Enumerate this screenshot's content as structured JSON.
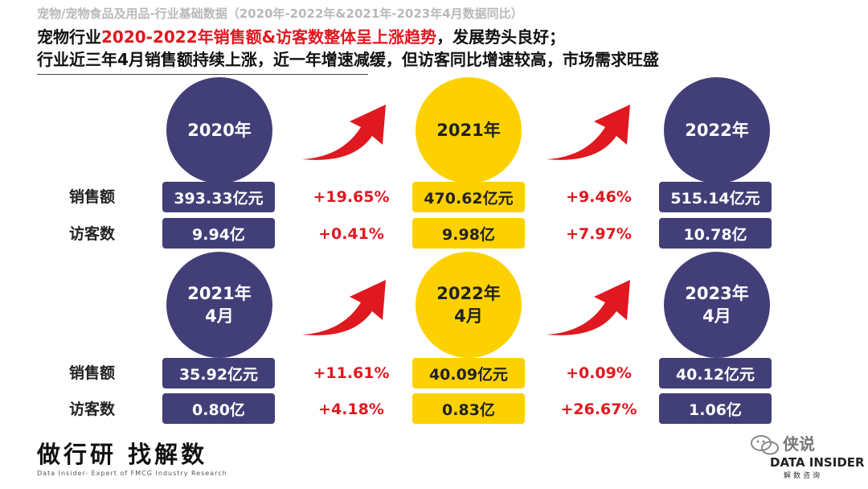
{
  "header": {
    "subtitle": "宠物/宠物食品及用品-行业基础数据（2020年-2022年&2021年-2023年4月数据同比）",
    "line1_prefix": "宠物行业",
    "line1_highlight": "2020-2022年销售额&访客数整体呈上涨趋势",
    "line1_suffix": "，发展势头良好；",
    "line2": "行业近三年4月销售额持续上涨，近一年增速减缓，但访客同比增速较高，市场需求旺盛"
  },
  "row_labels": {
    "sales": "销售额",
    "visitors": "访客数"
  },
  "annual": {
    "periods": [
      "2020年",
      "2021年",
      "2022年"
    ],
    "sales": [
      "393.33亿元",
      "470.62亿元",
      "515.14亿元"
    ],
    "visitors": [
      "9.94亿",
      "9.98亿",
      "10.78亿"
    ],
    "sales_growth": [
      "+19.65%",
      "+9.46%"
    ],
    "visitor_growth": [
      "+0.41%",
      "+7.97%"
    ]
  },
  "april": {
    "periods": [
      {
        "year": "2021年",
        "month": "4月"
      },
      {
        "year": "2022年",
        "month": "4月"
      },
      {
        "year": "2023年",
        "month": "4月"
      }
    ],
    "sales": [
      "35.92亿元",
      "40.09亿元",
      "40.12亿元"
    ],
    "visitors": [
      "0.80亿",
      "0.83亿",
      "1.06亿"
    ],
    "sales_growth": [
      "+11.61%",
      "+0.09%"
    ],
    "visitor_growth": [
      "+4.18%",
      "+26.67%"
    ]
  },
  "footer": {
    "slogan": "做行研 找解数",
    "tagline": "Data Insider- Expert of FMCG Industry Research",
    "watermark_text": "侠说",
    "logo_name": "DATA INSIDER",
    "logo_sub": "解数咨询"
  },
  "colors": {
    "navy": "#423f78",
    "gold": "#fdd100",
    "red": "#e0181f"
  },
  "icons": [
    "growth-arrow-icon",
    "wechat-icon"
  ]
}
